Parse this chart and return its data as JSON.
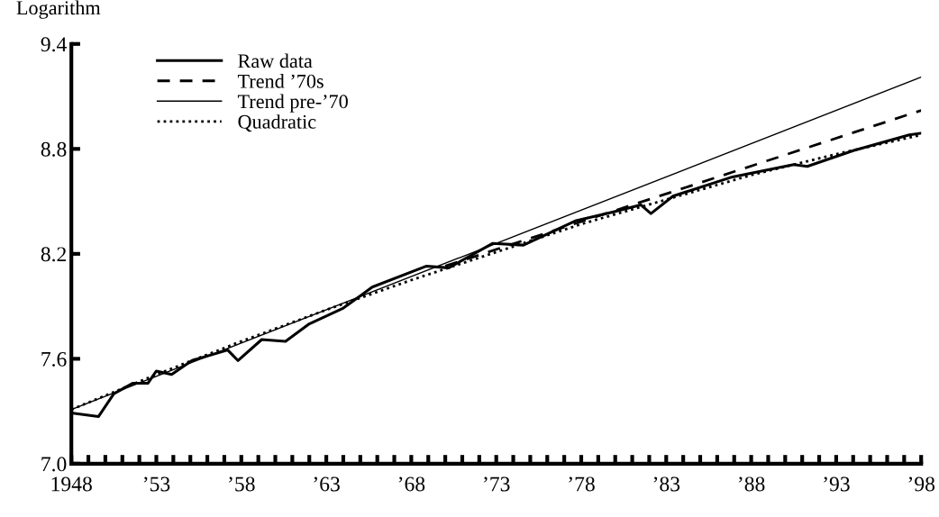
{
  "chart_data": {
    "type": "line",
    "ylabel": "Logarithm",
    "xlim": [
      1948,
      1998
    ],
    "ylim": [
      7.0,
      9.4
    ],
    "yticks": [
      {
        "value": 7.0,
        "label": "7.0"
      },
      7.6,
      8.2,
      8.8,
      9.4
    ],
    "xticks": [
      {
        "value": 1948,
        "label": "1948"
      },
      {
        "value": 1949,
        "label": null
      },
      {
        "value": 1950,
        "label": null
      },
      {
        "value": 1951,
        "label": null
      },
      {
        "value": 1952,
        "label": null
      },
      {
        "value": 1953,
        "label": "’53"
      },
      {
        "value": 1954,
        "label": null
      },
      {
        "value": 1955,
        "label": null
      },
      {
        "value": 1956,
        "label": null
      },
      {
        "value": 1957,
        "label": null
      },
      {
        "value": 1958,
        "label": "’58"
      },
      {
        "value": 1959,
        "label": null
      },
      {
        "value": 1960,
        "label": null
      },
      {
        "value": 1961,
        "label": null
      },
      {
        "value": 1962,
        "label": null
      },
      {
        "value": 1963,
        "label": "’63"
      },
      {
        "value": 1964,
        "label": null
      },
      {
        "value": 1965,
        "label": null
      },
      {
        "value": 1966,
        "label": null
      },
      {
        "value": 1967,
        "label": null
      },
      {
        "value": 1968,
        "label": "’68"
      },
      {
        "value": 1969,
        "label": null
      },
      {
        "value": 1970,
        "label": null
      },
      {
        "value": 1971,
        "label": null
      },
      {
        "value": 1972,
        "label": null
      },
      {
        "value": 1973,
        "label": "’73"
      },
      {
        "value": 1974,
        "label": null
      },
      {
        "value": 1975,
        "label": null
      },
      {
        "value": 1976,
        "label": null
      },
      {
        "value": 1977,
        "label": null
      },
      {
        "value": 1978,
        "label": "’78"
      },
      {
        "value": 1979,
        "label": null
      },
      {
        "value": 1980,
        "label": null
      },
      {
        "value": 1981,
        "label": null
      },
      {
        "value": 1982,
        "label": null
      },
      {
        "value": 1983,
        "label": "’83"
      },
      {
        "value": 1984,
        "label": null
      },
      {
        "value": 1985,
        "label": null
      },
      {
        "value": 1986,
        "label": null
      },
      {
        "value": 1987,
        "label": null
      },
      {
        "value": 1988,
        "label": "’88"
      },
      {
        "value": 1989,
        "label": null
      },
      {
        "value": 1990,
        "label": null
      },
      {
        "value": 1991,
        "label": null
      },
      {
        "value": 1992,
        "label": null
      },
      {
        "value": 1993,
        "label": "’93"
      },
      {
        "value": 1994,
        "label": null
      },
      {
        "value": 1995,
        "label": null
      },
      {
        "value": 1996,
        "label": null
      },
      {
        "value": 1997,
        "label": null
      },
      {
        "value": 1998,
        "label": "’98"
      }
    ],
    "grid": false,
    "legend": "top left",
    "series": [
      {
        "name": "Raw data",
        "color": "#000000",
        "line_style": "solid",
        "x": [
          1948,
          1949.6,
          1950.5,
          1951.6,
          1952.5,
          1953,
          1953.9,
          1955.1,
          1957.2,
          1957.8,
          1959.2,
          1960.6,
          1962,
          1964,
          1965,
          1965.7,
          1968.9,
          1970.2,
          1972.8,
          1974.6,
          1977.7,
          1979.9,
          1981.5,
          1982.1,
          1983.4,
          1986.9,
          1990.5,
          1991.3,
          1994,
          1997.3,
          1998
        ],
        "values": [
          7.29,
          7.27,
          7.4,
          7.46,
          7.46,
          7.53,
          7.51,
          7.59,
          7.65,
          7.59,
          7.71,
          7.7,
          7.8,
          7.89,
          7.96,
          8.01,
          8.13,
          8.12,
          8.26,
          8.25,
          8.39,
          8.44,
          8.48,
          8.43,
          8.53,
          8.64,
          8.71,
          8.7,
          8.79,
          8.88,
          8.89
        ]
      },
      {
        "name": "Trend ’70s",
        "color": "#000000",
        "line_style": "dashed",
        "x": [
          1970,
          1998
        ],
        "values": [
          8.13,
          9.02
        ]
      },
      {
        "name": "Trend pre-’70",
        "color": "#000000",
        "line_style": "solid",
        "x": [
          1948,
          1998
        ],
        "values": [
          7.31,
          9.21
        ]
      },
      {
        "name": "Quadratic",
        "color": "#000000",
        "line_style": "dotted",
        "x": [
          1948,
          1953,
          1958,
          1963,
          1968,
          1973,
          1978,
          1983,
          1988,
          1993,
          1998
        ],
        "values": [
          7.31,
          7.51,
          7.7,
          7.88,
          8.05,
          8.21,
          8.37,
          8.51,
          8.65,
          8.77,
          8.88
        ]
      }
    ]
  }
}
